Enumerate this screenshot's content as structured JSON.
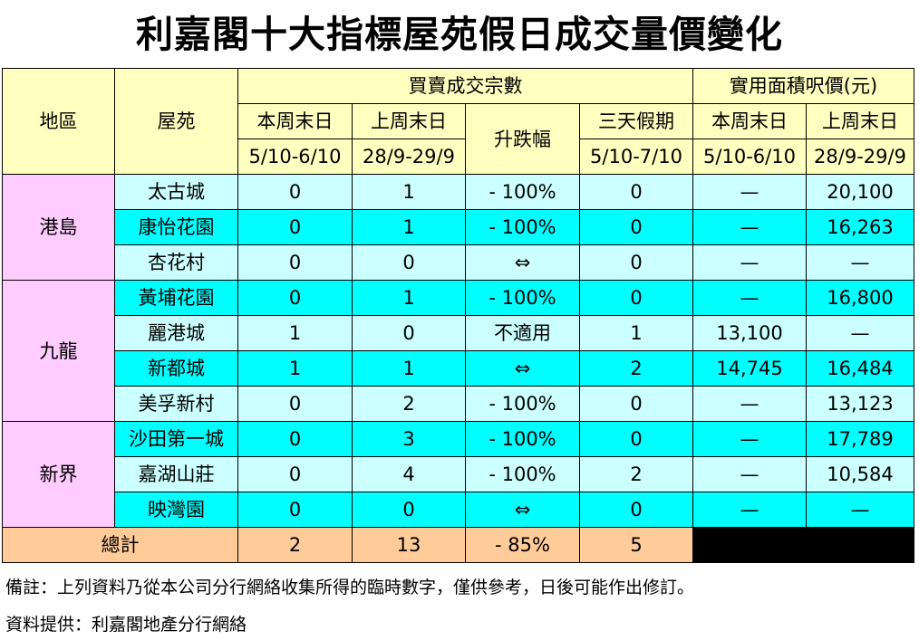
{
  "title": "利嘉閣十大指標屋苑假日成交量價變化",
  "header": {
    "region": "地區",
    "estate": "屋苑",
    "group_transactions": "買賣成交宗數",
    "group_price": "實用面積呎價(元)",
    "this_weekend": "本周末日",
    "this_weekend_dates": "5/10-6/10",
    "last_weekend": "上周末日",
    "last_weekend_dates": "28/9-29/9",
    "change": "升跌幅",
    "holiday": "三天假期",
    "holiday_dates": "5/10-7/10",
    "price_this": "本周末日",
    "price_this_dates": "5/10-6/10",
    "price_last": "上周末日",
    "price_last_dates": "28/9-29/9"
  },
  "regions": [
    {
      "name": "港島",
      "rows": [
        {
          "estate": "太古城",
          "this": "0",
          "last": "1",
          "change": "- 100%",
          "holiday": "0",
          "price_this": "—",
          "price_last": "20,100"
        },
        {
          "estate": "康怡花園",
          "this": "0",
          "last": "1",
          "change": "- 100%",
          "holiday": "0",
          "price_this": "—",
          "price_last": "16,263"
        },
        {
          "estate": "杏花村",
          "this": "0",
          "last": "0",
          "change": "⇔",
          "holiday": "0",
          "price_this": "—",
          "price_last": "—"
        }
      ]
    },
    {
      "name": "九龍",
      "rows": [
        {
          "estate": "黃埔花園",
          "this": "0",
          "last": "1",
          "change": "- 100%",
          "holiday": "0",
          "price_this": "—",
          "price_last": "16,800"
        },
        {
          "estate": "麗港城",
          "this": "1",
          "last": "0",
          "change": "不適用",
          "holiday": "1",
          "price_this": "13,100",
          "price_last": "—"
        },
        {
          "estate": "新都城",
          "this": "1",
          "last": "1",
          "change": "⇔",
          "holiday": "2",
          "price_this": "14,745",
          "price_last": "16,484"
        },
        {
          "estate": "美孚新村",
          "this": "0",
          "last": "2",
          "change": "- 100%",
          "holiday": "0",
          "price_this": "—",
          "price_last": "13,123"
        }
      ]
    },
    {
      "name": "新界",
      "rows": [
        {
          "estate": "沙田第一城",
          "this": "0",
          "last": "3",
          "change": "- 100%",
          "holiday": "0",
          "price_this": "—",
          "price_last": "17,789"
        },
        {
          "estate": "嘉湖山莊",
          "this": "0",
          "last": "4",
          "change": "- 100%",
          "holiday": "2",
          "price_this": "—",
          "price_last": "10,584"
        },
        {
          "estate": "映灣園",
          "this": "0",
          "last": "0",
          "change": "⇔",
          "holiday": "0",
          "price_this": "—",
          "price_last": "—"
        }
      ]
    }
  ],
  "total": {
    "label": "總計",
    "this": "2",
    "last": "13",
    "change": "- 85%",
    "holiday": "5"
  },
  "notes": {
    "remark": "備註：上列資料乃從本公司分行網絡收集所得的臨時數字，僅供參考，日後可能作出修訂。",
    "source": "資料提供：利嘉閣地產分行網絡"
  }
}
